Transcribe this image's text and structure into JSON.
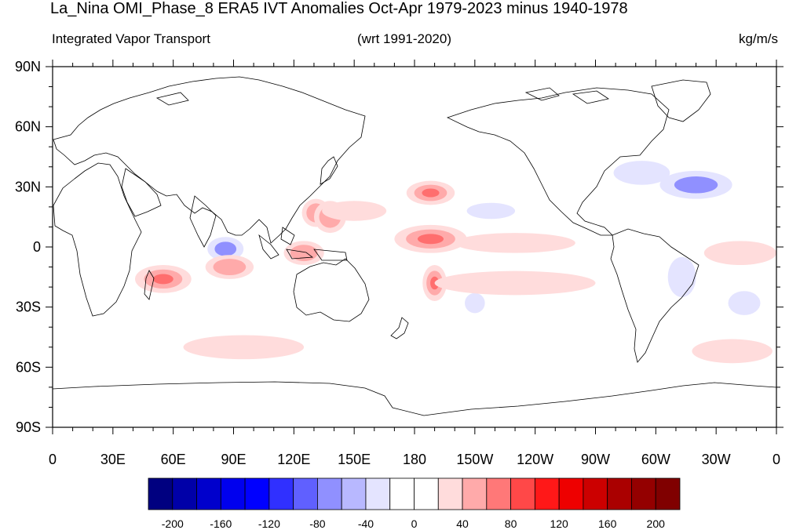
{
  "title": "La_Nina OMI_Phase_8 ERA5 IVT Anomalies Oct-Apr 1979-2023 minus 1940-1978",
  "subtitle_left": "Integrated Vapor Transport",
  "subtitle_center": "(wrt 1991-2020)",
  "subtitle_right": "kg/m/s",
  "lat_labels": [
    "90N",
    "60N",
    "30N",
    "0",
    "30S",
    "60S",
    "90S"
  ],
  "lon_labels": [
    "0",
    "30E",
    "60E",
    "90E",
    "120E",
    "150E",
    "180",
    "150W",
    "120W",
    "90W",
    "60W",
    "30W",
    "0"
  ],
  "colorbar": {
    "labels": [
      "-200",
      "-160",
      "-120",
      "-80",
      "-40",
      "0",
      "40",
      "80",
      "120",
      "160",
      "200"
    ],
    "colors": [
      "#000080",
      "#0000a8",
      "#0000cc",
      "#0000ee",
      "#0000ff",
      "#3030ff",
      "#6060ff",
      "#9090ff",
      "#b8b8ff",
      "#e4e4ff",
      "#ffffff",
      "#ffffff",
      "#ffdcdc",
      "#ffaaaa",
      "#ff7878",
      "#ff4848",
      "#ff1818",
      "#ee0000",
      "#cc0000",
      "#aa0000",
      "#940000",
      "#800000"
    ]
  },
  "anomalies": [
    {
      "lon": 86,
      "lat": -1,
      "rx": 9,
      "ry": 6,
      "level": -2
    },
    {
      "lon": 55,
      "lat": -16,
      "rx": 14,
      "ry": 7,
      "level": 3
    },
    {
      "lon": 88,
      "lat": -10,
      "rx": 12,
      "ry": 6,
      "level": 2
    },
    {
      "lon": 125,
      "lat": -3,
      "rx": 10,
      "ry": 6,
      "level": 2
    },
    {
      "lon": 188,
      "lat": 4,
      "rx": 18,
      "ry": 7,
      "level": 3
    },
    {
      "lon": 188,
      "lat": 27,
      "rx": 12,
      "ry": 6,
      "level": 3
    },
    {
      "lon": 131,
      "lat": 17,
      "rx": 7,
      "ry": 7,
      "level": 2
    },
    {
      "lon": 138,
      "lat": 15,
      "rx": 8,
      "ry": 8,
      "level": 2
    },
    {
      "lon": 190,
      "lat": -18,
      "rx": 6,
      "ry": 9,
      "level": 3
    },
    {
      "lon": 95,
      "lat": -50,
      "rx": 30,
      "ry": 6,
      "level": 1
    },
    {
      "lon": 338,
      "lat": -52,
      "rx": 20,
      "ry": 6,
      "level": 1
    },
    {
      "lon": 342,
      "lat": -3,
      "rx": 18,
      "ry": 6,
      "level": 1
    },
    {
      "lon": 320,
      "lat": 31,
      "rx": 18,
      "ry": 7,
      "level": -2
    },
    {
      "lon": 293,
      "lat": 37,
      "rx": 14,
      "ry": 6,
      "level": -1
    },
    {
      "lon": 313,
      "lat": -15,
      "rx": 7,
      "ry": 10,
      "level": -1
    },
    {
      "lon": 344,
      "lat": -28,
      "rx": 8,
      "ry": 6,
      "level": -1
    },
    {
      "lon": 218,
      "lat": 18,
      "rx": 12,
      "ry": 4,
      "level": -1
    },
    {
      "lon": 210,
      "lat": -28,
      "rx": 5,
      "ry": 5,
      "level": -1
    },
    {
      "lon": 150,
      "lat": 18,
      "rx": 16,
      "ry": 5,
      "level": 1
    },
    {
      "lon": 230,
      "lat": 2,
      "rx": 30,
      "ry": 5,
      "level": 1
    },
    {
      "lon": 230,
      "lat": -18,
      "rx": 40,
      "ry": 6,
      "level": 1
    }
  ]
}
